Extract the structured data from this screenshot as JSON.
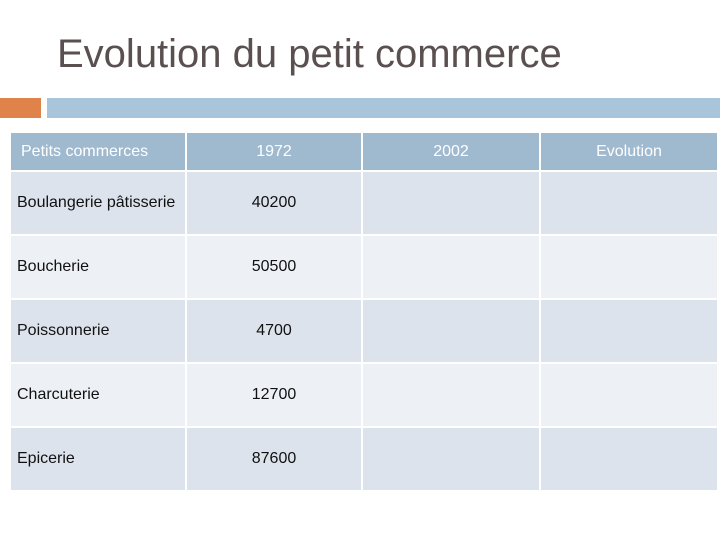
{
  "slide": {
    "title": "Evolution du petit commerce"
  },
  "table": {
    "headers": [
      "Petits commerces",
      "1972",
      "2002",
      "Evolution"
    ],
    "rows": [
      {
        "name": "Boulangerie pâtisserie",
        "v1972": "40200",
        "v2002": "",
        "evolution": ""
      },
      {
        "name": "Boucherie",
        "v1972": "50500",
        "v2002": "",
        "evolution": ""
      },
      {
        "name": "Poissonnerie",
        "v1972": "4700",
        "v2002": "",
        "evolution": ""
      },
      {
        "name": "Charcuterie",
        "v1972": "12700",
        "v2002": "",
        "evolution": ""
      },
      {
        "name": "Epicerie",
        "v1972": "87600",
        "v2002": "",
        "evolution": ""
      }
    ]
  },
  "colors": {
    "accent_orange": "#e0834a",
    "accent_blue": "#a9c5dc",
    "header_bg": "#9fb9cf",
    "row_dark": "#dce3ec",
    "row_light": "#edf1f6"
  }
}
